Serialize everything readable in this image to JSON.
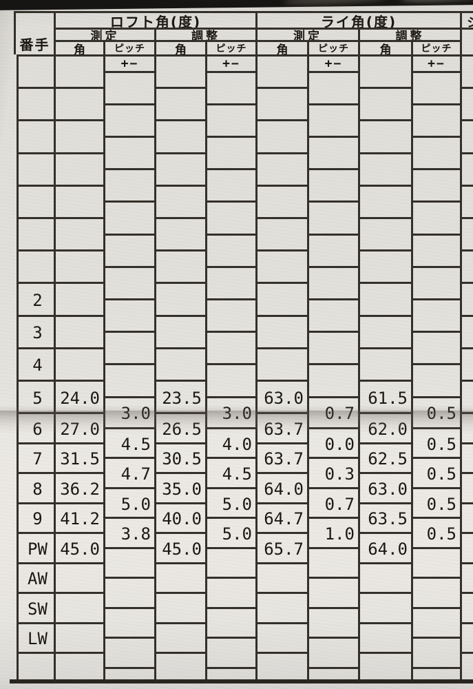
{
  "table": {
    "header": {
      "row_header": "番手",
      "groups": [
        "ロフト角(度)",
        "ライ角(度)"
      ],
      "sub_headers": [
        "測定",
        "調整",
        "測定",
        "調整"
      ],
      "angle_label": "角",
      "pitch_label": "ピッチ",
      "pitch_sign_label": "+−",
      "right_edge_partial_char": "シ"
    },
    "rows": [
      {
        "club": ""
      },
      {
        "club": ""
      },
      {
        "club": ""
      },
      {
        "club": ""
      },
      {
        "club": ""
      },
      {
        "club": ""
      },
      {
        "club": ""
      },
      {
        "club": "2"
      },
      {
        "club": "3"
      },
      {
        "club": "4"
      },
      {
        "club": "5",
        "loft_measured": "24.0",
        "loft_adjusted": "23.5",
        "lie_measured": "63.0",
        "lie_adjusted": "61.5"
      },
      {
        "club": "6",
        "loft_measured": "27.0",
        "loft_adjusted": "26.5",
        "lie_measured": "63.7",
        "lie_adjusted": "62.0"
      },
      {
        "club": "7",
        "loft_measured": "31.5",
        "loft_adjusted": "30.5",
        "lie_measured": "63.7",
        "lie_adjusted": "62.5"
      },
      {
        "club": "8",
        "loft_measured": "36.2",
        "loft_adjusted": "35.0",
        "lie_measured": "64.0",
        "lie_adjusted": "63.0"
      },
      {
        "club": "9",
        "loft_measured": "41.2",
        "loft_adjusted": "40.0",
        "lie_measured": "64.7",
        "lie_adjusted": "63.5"
      },
      {
        "club": "PW",
        "loft_measured": "45.0",
        "loft_adjusted": "45.0",
        "lie_measured": "65.7",
        "lie_adjusted": "64.0"
      },
      {
        "club": "AW"
      },
      {
        "club": "SW"
      },
      {
        "club": "LW"
      },
      {
        "club": ""
      }
    ],
    "pitch_between_rows": {
      "loft_measured": {
        "10": "3.0",
        "11": "4.5",
        "12": "4.7",
        "13": "5.0",
        "14": "3.8"
      },
      "loft_adjusted": {
        "10": "3.0",
        "11": "4.0",
        "12": "4.5",
        "13": "5.0",
        "14": "5.0"
      },
      "lie_measured": {
        "10": "0.7",
        "11": "0.0",
        "12": "0.3",
        "13": "0.7",
        "14": "1.0"
      },
      "lie_adjusted": {
        "10": "0.5",
        "11": "0.5",
        "12": "0.5",
        "13": "0.5",
        "14": "0.5"
      }
    }
  },
  "colors": {
    "paper": "#e5e3de",
    "line": "#332f29",
    "text": "#1b1713",
    "background": "#161513",
    "fold_shadow": "#9b958c"
  }
}
